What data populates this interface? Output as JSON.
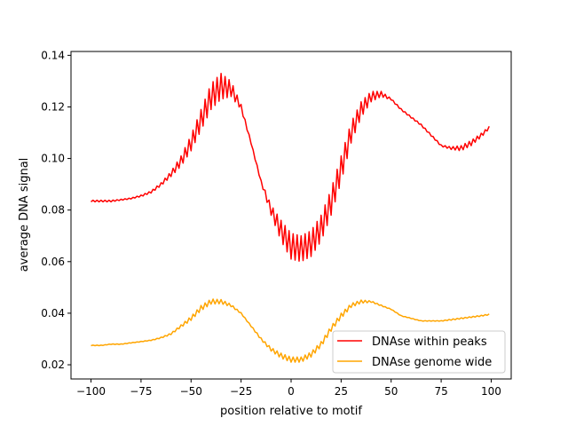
{
  "chart_data": {
    "type": "line",
    "title": "",
    "xlabel": "position relative to motif",
    "ylabel": "average DNA signal",
    "xlim": [
      -110,
      110
    ],
    "ylim": [
      0.0145,
      0.1415
    ],
    "xticks": [
      -100,
      -75,
      -50,
      -25,
      0,
      25,
      50,
      75,
      100
    ],
    "xtick_labels": [
      "−100",
      "−75",
      "−50",
      "−25",
      "0",
      "25",
      "50",
      "75",
      "100"
    ],
    "yticks": [
      0.02,
      0.04,
      0.06,
      0.08,
      0.1,
      0.12,
      0.14
    ],
    "ytick_labels": [
      "0.02",
      "0.04",
      "0.06",
      "0.08",
      "0.10",
      "0.12",
      "0.14"
    ],
    "grid": false,
    "legend_position": "lower-right",
    "x": [
      -100,
      -95,
      -90,
      -85,
      -80,
      -75,
      -70,
      -65,
      -60,
      -55,
      -50,
      -45,
      -40,
      -35,
      -30,
      -25,
      -20,
      -15,
      -10,
      -5,
      0,
      5,
      10,
      15,
      20,
      25,
      30,
      35,
      40,
      45,
      50,
      55,
      60,
      65,
      70,
      75,
      80,
      85,
      90,
      95,
      99
    ],
    "series": [
      {
        "name": "DNAse within peaks",
        "color": "#ff0000",
        "values": [
          0.0835,
          0.0835,
          0.0835,
          0.084,
          0.0845,
          0.0855,
          0.087,
          0.09,
          0.094,
          0.099,
          0.106,
          0.115,
          0.124,
          0.128,
          0.127,
          0.12,
          0.106,
          0.091,
          0.08,
          0.072,
          0.066,
          0.065,
          0.067,
          0.073,
          0.083,
          0.096,
          0.11,
          0.119,
          0.124,
          0.125,
          0.123,
          0.119,
          0.116,
          0.113,
          0.109,
          0.105,
          0.104,
          0.104,
          0.106,
          0.109,
          0.112
        ],
        "oscillation_amplitude": [
          0.0003,
          0.0003,
          0.0003,
          0.0002,
          0.0002,
          0.0003,
          0.0004,
          0.0006,
          0.001,
          0.002,
          0.003,
          0.004,
          0.005,
          0.005,
          0.003,
          0.001,
          0.0003,
          0.0005,
          0.002,
          0.004,
          0.005,
          0.005,
          0.005,
          0.005,
          0.005,
          0.005,
          0.004,
          0.003,
          0.002,
          0.001,
          0.0003,
          0.0003,
          0.0003,
          0.0003,
          0.0003,
          0.0003,
          0.0005,
          0.001,
          0.001,
          0.0008,
          0.0005
        ]
      },
      {
        "name": "DNAse genome wide",
        "color": "#ffa500",
        "values": [
          0.0275,
          0.0275,
          0.028,
          0.028,
          0.0285,
          0.029,
          0.0295,
          0.0305,
          0.032,
          0.035,
          0.038,
          0.042,
          0.0445,
          0.0445,
          0.043,
          0.04,
          0.035,
          0.03,
          0.026,
          0.0235,
          0.022,
          0.022,
          0.024,
          0.028,
          0.034,
          0.039,
          0.043,
          0.0445,
          0.0445,
          0.043,
          0.0415,
          0.039,
          0.038,
          0.037,
          0.037,
          0.037,
          0.0375,
          0.038,
          0.0385,
          0.039,
          0.0395
        ],
        "oscillation_amplitude": [
          0.0001,
          0.0001,
          0.0001,
          0.0001,
          0.0001,
          0.0001,
          0.0001,
          0.0002,
          0.0003,
          0.0005,
          0.0008,
          0.001,
          0.001,
          0.0008,
          0.0005,
          0.0002,
          0.0002,
          0.0004,
          0.0007,
          0.001,
          0.001,
          0.001,
          0.001,
          0.001,
          0.001,
          0.001,
          0.0008,
          0.0006,
          0.0003,
          0.0002,
          0.0001,
          0.0001,
          0.0001,
          0.0001,
          0.0001,
          0.0001,
          0.0002,
          0.0002,
          0.0002,
          0.0002,
          0.0002
        ]
      }
    ]
  }
}
